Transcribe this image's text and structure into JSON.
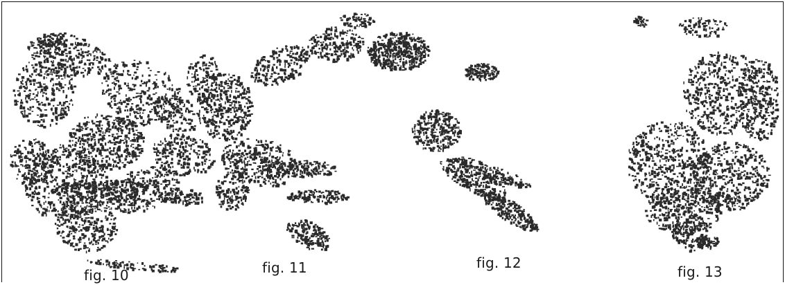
{
  "captions": {
    "fig10": "fig. 10",
    "fig11": "fig. 11",
    "fig12": "fig. 12",
    "fig13": "fig. 13"
  },
  "colors": {
    "ink": "#2a2a2a",
    "background": "#ffffff",
    "border": "#111111"
  }
}
